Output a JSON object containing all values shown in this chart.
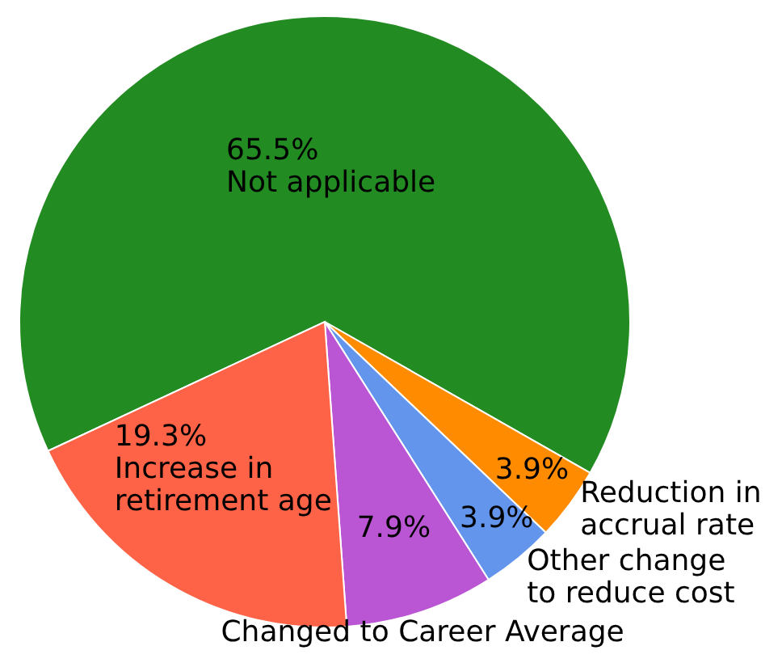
{
  "chart_data": {
    "type": "pie",
    "categories": [
      "Not applicable",
      "Reduction in accrual rate",
      "Other change to reduce cost",
      "Changed to Career Average",
      "Increase in retirement age"
    ],
    "values": [
      65.5,
      3.9,
      3.9,
      7.9,
      19.3
    ],
    "value_labels": [
      "65.5%",
      "3.9%",
      "3.9%",
      "7.9%",
      "19.3%"
    ],
    "colors": [
      "#228b22",
      "#ff8c00",
      "#6495ed",
      "#ba55d3",
      "#ff6347"
    ]
  }
}
